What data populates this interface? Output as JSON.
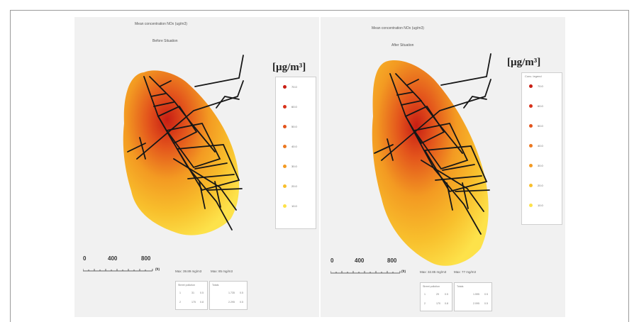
{
  "panels": [
    {
      "title": "Mean concentration NOx (ug/m3)",
      "subtitle": "Before Situation",
      "unit": "[µg/m³]",
      "legend": {
        "title": "",
        "items": [
          {
            "label": "70.0",
            "color": "#c81e14"
          },
          {
            "label": "60.0",
            "color": "#d8321a"
          },
          {
            "label": "50.0",
            "color": "#e3541c"
          },
          {
            "label": "40.0",
            "color": "#ec7820"
          },
          {
            "label": "30.0",
            "color": "#f39a22"
          },
          {
            "label": "20.0",
            "color": "#f8bf2c"
          },
          {
            "label": "10.0",
            "color": "#fde24a"
          }
        ]
      },
      "scale": {
        "labels": [
          "0",
          "400",
          "800"
        ],
        "unit": "(ft)"
      },
      "max_values": [
        "Max: 39.89 mg/m3",
        "Max: 85 mg/m3"
      ],
      "table_left": {
        "header": "Street pollution",
        "rows": [
          [
            "1",
            "31",
            "0.5"
          ],
          [
            "2",
            "175",
            "0.8"
          ]
        ]
      },
      "table_right": {
        "header": "Totals",
        "rows": [
          [
            "",
            "1.735",
            "0.5"
          ],
          [
            "",
            "2.295",
            "0.5"
          ]
        ]
      }
    },
    {
      "title": "Mean concentration NOx (ug/m3)",
      "subtitle": "After Situation",
      "unit": "[µg/m³]",
      "legend": {
        "title": "Conc. legend",
        "items": [
          {
            "label": "70.0",
            "color": "#c81e14"
          },
          {
            "label": "60.0",
            "color": "#d8321a"
          },
          {
            "label": "50.0",
            "color": "#e3541c"
          },
          {
            "label": "40.0",
            "color": "#ec7820"
          },
          {
            "label": "30.0",
            "color": "#f39a22"
          },
          {
            "label": "20.0",
            "color": "#f8bf2c"
          },
          {
            "label": "10.0",
            "color": "#fde24a"
          }
        ]
      },
      "scale": {
        "labels": [
          "0",
          "400",
          "800"
        ],
        "unit": "(ft)"
      },
      "max_values": [
        "Max: 32.85 mg/m3",
        "Max: 77 mg/m3"
      ],
      "table_left": {
        "header": "Street pollution",
        "rows": [
          [
            "1",
            "29",
            "0.5"
          ],
          [
            "2",
            "170",
            "0.8"
          ]
        ]
      },
      "table_right": {
        "header": "Totals",
        "rows": [
          [
            "",
            "1.595",
            "0.5"
          ],
          [
            "",
            "2.095",
            "0.5"
          ]
        ]
      }
    }
  ]
}
